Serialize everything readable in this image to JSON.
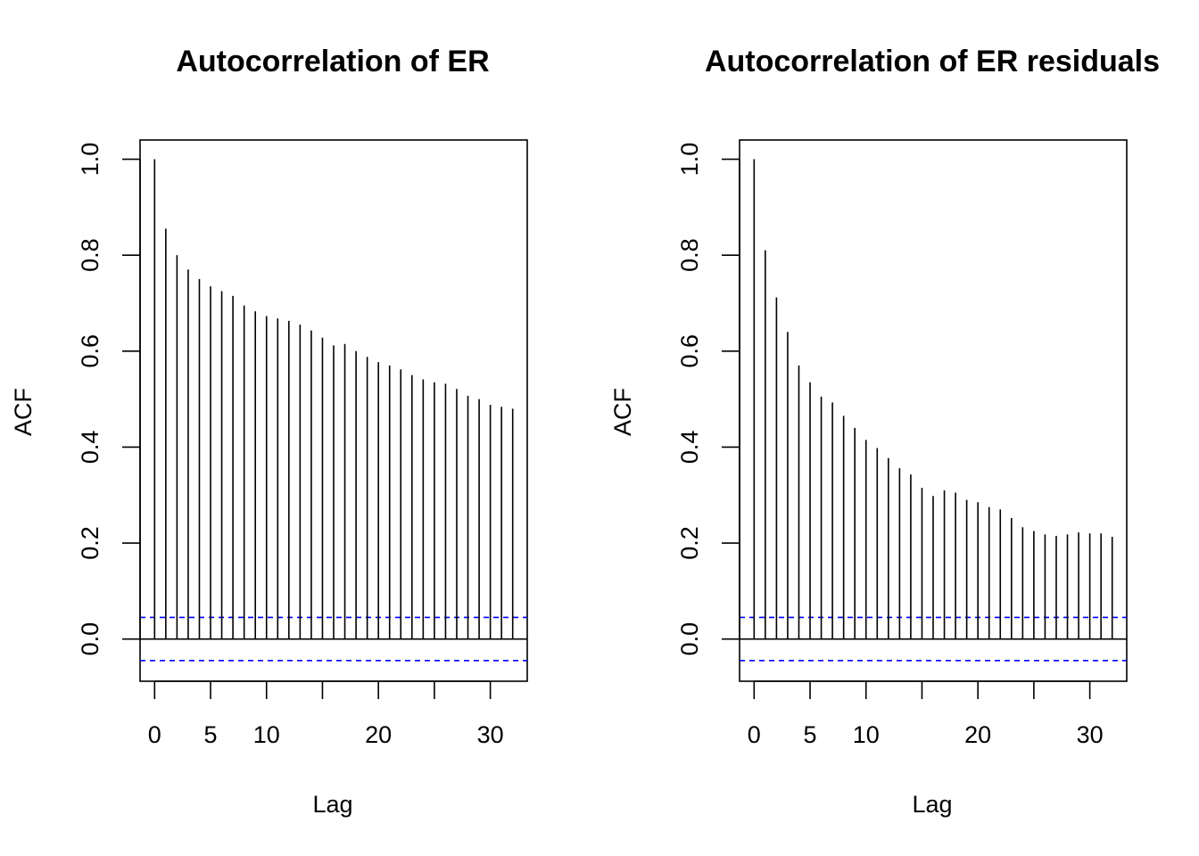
{
  "chart_data": [
    {
      "type": "bar",
      "title": "Autocorrelation of ER",
      "xlabel": "Lag",
      "ylabel": "ACF",
      "xlim": [
        -1.3,
        33.3
      ],
      "ylim": [
        -0.088,
        1.04
      ],
      "xticks": [
        0,
        5,
        10,
        20,
        30
      ],
      "xtick_marks": [
        0,
        5,
        10,
        15,
        20,
        25,
        30
      ],
      "yticks": [
        "0.0",
        "0.2",
        "0.4",
        "0.6",
        "0.8",
        "1.0"
      ],
      "ytick_values": [
        0,
        0.2,
        0.4,
        0.6,
        0.8,
        1.0
      ],
      "conf_limit": 0.045,
      "conf_color": "#0000ff",
      "x": [
        0,
        1,
        2,
        3,
        4,
        5,
        6,
        7,
        8,
        9,
        10,
        11,
        12,
        13,
        14,
        15,
        16,
        17,
        18,
        19,
        20,
        21,
        22,
        23,
        24,
        25,
        26,
        27,
        28,
        29,
        30,
        31,
        32
      ],
      "values": [
        1.0,
        0.855,
        0.8,
        0.77,
        0.75,
        0.735,
        0.725,
        0.715,
        0.695,
        0.683,
        0.673,
        0.668,
        0.663,
        0.655,
        0.643,
        0.628,
        0.612,
        0.615,
        0.6,
        0.588,
        0.577,
        0.57,
        0.562,
        0.55,
        0.541,
        0.535,
        0.532,
        0.521,
        0.507,
        0.5,
        0.488,
        0.484,
        0.48
      ]
    },
    {
      "type": "bar",
      "title": "Autocorrelation of ER residuals",
      "xlabel": "Lag",
      "ylabel": "ACF",
      "xlim": [
        -1.3,
        33.3
      ],
      "ylim": [
        -0.088,
        1.04
      ],
      "xticks": [
        0,
        5,
        10,
        20,
        30
      ],
      "xtick_marks": [
        0,
        5,
        10,
        15,
        20,
        25,
        30
      ],
      "yticks": [
        "0.0",
        "0.2",
        "0.4",
        "0.6",
        "0.8",
        "1.0"
      ],
      "ytick_values": [
        0,
        0.2,
        0.4,
        0.6,
        0.8,
        1.0
      ],
      "conf_limit": 0.045,
      "conf_color": "#0000ff",
      "x": [
        0,
        1,
        2,
        3,
        4,
        5,
        6,
        7,
        8,
        9,
        10,
        11,
        12,
        13,
        14,
        15,
        16,
        17,
        18,
        19,
        20,
        21,
        22,
        23,
        24,
        25,
        26,
        27,
        28,
        29,
        30,
        31,
        32
      ],
      "values": [
        1.0,
        0.81,
        0.712,
        0.64,
        0.57,
        0.535,
        0.505,
        0.493,
        0.465,
        0.44,
        0.415,
        0.398,
        0.377,
        0.356,
        0.343,
        0.315,
        0.298,
        0.31,
        0.305,
        0.29,
        0.285,
        0.275,
        0.27,
        0.252,
        0.233,
        0.225,
        0.218,
        0.215,
        0.218,
        0.222,
        0.22,
        0.22,
        0.213
      ]
    }
  ]
}
